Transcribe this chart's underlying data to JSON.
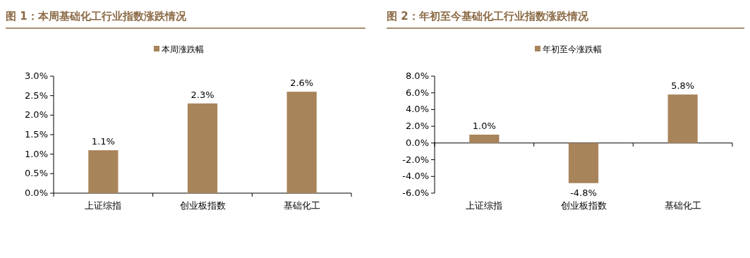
{
  "chart_data": [
    {
      "type": "bar",
      "title": "图 1：本周基础化工行业指数涨跌情况",
      "categories": [
        "上证综指",
        "创业板指数",
        "基础化工"
      ],
      "series": [
        {
          "name": "本周涨跌幅",
          "color": "#a8845b",
          "values": [
            1.1,
            2.3,
            2.6
          ],
          "value_labels": [
            "1.1%",
            "2.3%",
            "2.6%"
          ]
        }
      ],
      "ylim": [
        0,
        3
      ],
      "yticks": [
        {
          "value": 0,
          "label": "0.0%"
        },
        {
          "value": 0.5,
          "label": "0.5%"
        },
        {
          "value": 1,
          "label": "1.0%"
        },
        {
          "value": 1.5,
          "label": "1.5%"
        },
        {
          "value": 2,
          "label": "2.0%"
        },
        {
          "value": 2.5,
          "label": "2.5%"
        },
        {
          "value": 3,
          "label": "3.0%"
        }
      ],
      "legend": "top"
    },
    {
      "type": "bar",
      "title": "图 2：年初至今基础化工行业指数涨跌情况",
      "categories": [
        "上证综指",
        "创业板指数",
        "基础化工"
      ],
      "series": [
        {
          "name": "年初至今涨跌幅",
          "color": "#a8845b",
          "values": [
            1.0,
            -4.8,
            5.8
          ],
          "value_labels": [
            "1.0%",
            "-4.8%",
            "5.8%"
          ]
        }
      ],
      "ylim": [
        -6,
        8
      ],
      "yticks": [
        {
          "value": -6,
          "label": "-6.0%"
        },
        {
          "value": -4,
          "label": "-4.0%"
        },
        {
          "value": -2,
          "label": "-2.0%"
        },
        {
          "value": 0,
          "label": "0.0%"
        },
        {
          "value": 2,
          "label": "2.0%"
        },
        {
          "value": 4,
          "label": "4.0%"
        },
        {
          "value": 6,
          "label": "6.0%"
        },
        {
          "value": 8,
          "label": "8.0%"
        }
      ],
      "legend": "top"
    }
  ]
}
